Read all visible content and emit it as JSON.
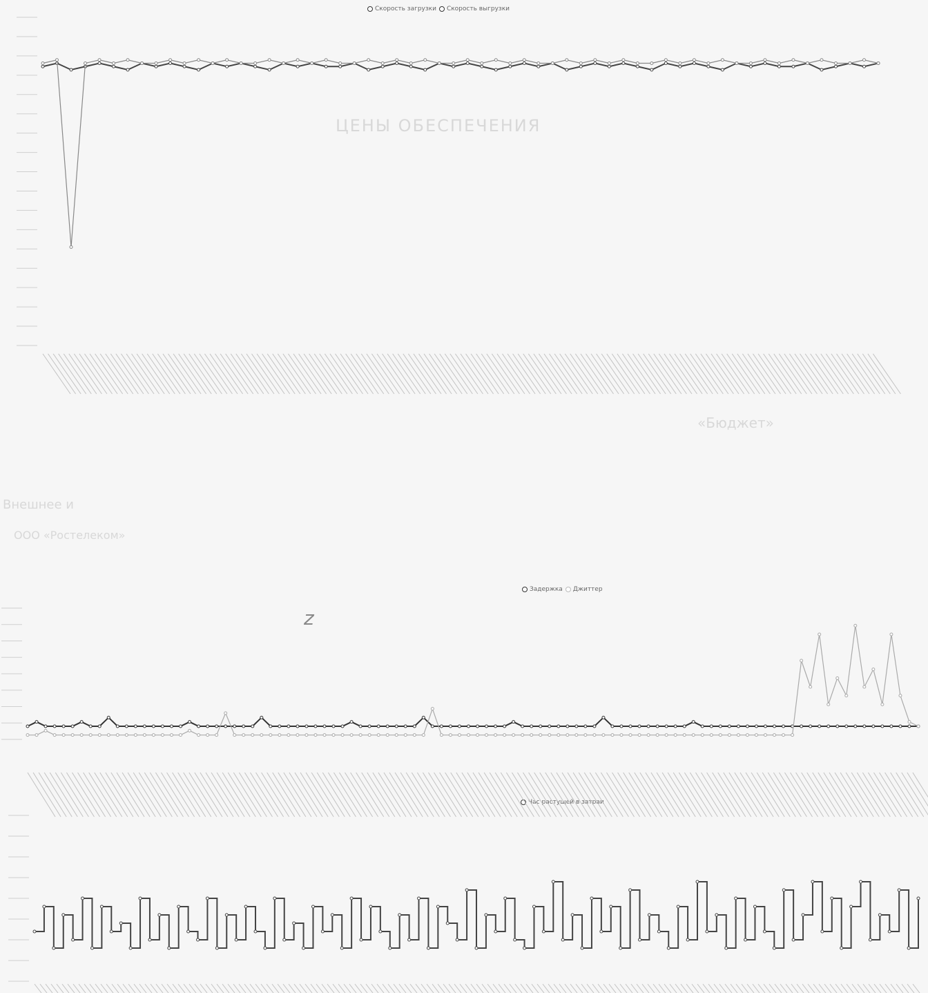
{
  "chart_data": [
    {
      "type": "line",
      "title": "",
      "xlabel": "",
      "ylabel": "",
      "legend_position": "top-center",
      "grid": false,
      "series": [
        {
          "name": "Скорость загрузки",
          "color": "#444444",
          "values": [
            85,
            86,
            84,
            85,
            86,
            85,
            84,
            86,
            85,
            86,
            85,
            84,
            86,
            85,
            86,
            85,
            84,
            86,
            85,
            86,
            85,
            85,
            86,
            84,
            85,
            86,
            85,
            84,
            86,
            85,
            86,
            85,
            84,
            85,
            86,
            85,
            86,
            84,
            85,
            86,
            85,
            86,
            85,
            84,
            86,
            85,
            86,
            85,
            84,
            86,
            85,
            86,
            85,
            85,
            86,
            84,
            85,
            86,
            85,
            86
          ]
        },
        {
          "name": "Скорость выгрузки",
          "color": "#888888",
          "values": [
            86,
            87,
            30,
            86,
            87,
            86,
            87,
            86,
            86,
            87,
            86,
            87,
            86,
            87,
            86,
            86,
            87,
            86,
            87,
            86,
            87,
            86,
            86,
            87,
            86,
            87,
            86,
            87,
            86,
            86,
            87,
            86,
            87,
            86,
            87,
            86,
            86,
            87,
            86,
            87,
            86,
            87,
            86,
            86,
            87,
            86,
            87,
            86,
            87,
            86,
            86,
            87,
            86,
            87,
            86,
            87,
            86,
            86,
            87,
            86
          ]
        }
      ]
    },
    {
      "type": "line",
      "title": "",
      "xlabel": "",
      "ylabel": "",
      "legend_position": "top-center",
      "grid": false,
      "series": [
        {
          "name": "Задержка",
          "color": "#333333",
          "values": [
            3,
            4,
            3,
            3,
            3,
            3,
            4,
            3,
            3,
            5,
            3,
            3,
            3,
            3,
            3,
            3,
            3,
            3,
            4,
            3,
            3,
            3,
            3,
            3,
            3,
            3,
            5,
            3,
            3,
            3,
            3,
            3,
            3,
            3,
            3,
            3,
            4,
            3,
            3,
            3,
            3,
            3,
            3,
            3,
            5,
            3,
            3,
            3,
            3,
            3,
            3,
            3,
            3,
            3,
            4,
            3,
            3,
            3,
            3,
            3,
            3,
            3,
            3,
            3,
            5,
            3,
            3,
            3,
            3,
            3,
            3,
            3,
            3,
            3,
            4,
            3,
            3,
            3,
            3,
            3,
            3,
            3,
            3,
            3,
            3,
            3,
            3,
            3,
            3,
            3,
            3,
            3,
            3,
            3,
            3,
            3,
            3,
            3,
            3,
            3
          ]
        },
        {
          "name": "Джиттер",
          "color": "#aaaaaa",
          "values": [
            1,
            1,
            2,
            1,
            1,
            1,
            1,
            1,
            1,
            1,
            1,
            1,
            1,
            1,
            1,
            1,
            1,
            1,
            2,
            1,
            1,
            1,
            6,
            1,
            1,
            1,
            1,
            1,
            1,
            1,
            1,
            1,
            1,
            1,
            1,
            1,
            1,
            1,
            1,
            1,
            1,
            1,
            1,
            1,
            1,
            7,
            1,
            1,
            1,
            1,
            1,
            1,
            1,
            1,
            1,
            1,
            1,
            1,
            1,
            1,
            1,
            1,
            1,
            1,
            1,
            1,
            1,
            1,
            1,
            1,
            1,
            1,
            1,
            1,
            1,
            1,
            1,
            1,
            1,
            1,
            1,
            1,
            1,
            1,
            1,
            1,
            18,
            12,
            24,
            8,
            14,
            10,
            26,
            12,
            16,
            8,
            24,
            10,
            4,
            3
          ]
        }
      ]
    },
    {
      "type": "line",
      "title": "",
      "xlabel": "",
      "ylabel": "",
      "legend_position": "top-center",
      "grid": false,
      "series": [
        {
          "name": "Час растущей в затраи",
          "color": "#444444",
          "values": [
            6,
            9,
            4,
            8,
            5,
            10,
            4,
            9,
            6,
            7,
            4,
            10,
            5,
            8,
            4,
            9,
            6,
            5,
            10,
            4,
            8,
            5,
            9,
            6,
            4,
            10,
            5,
            7,
            4,
            9,
            6,
            8,
            4,
            10,
            5,
            9,
            6,
            4,
            8,
            5,
            10,
            4,
            9,
            7,
            5,
            11,
            4,
            8,
            6,
            10,
            5,
            4,
            9,
            6,
            12,
            5,
            8,
            4,
            10,
            6,
            9,
            4,
            11,
            5,
            8,
            6,
            4,
            9,
            5,
            12,
            6,
            8,
            4,
            10,
            5,
            9,
            6,
            4,
            11,
            5,
            8,
            12,
            6,
            10,
            4,
            9,
            12,
            5,
            8,
            6,
            11,
            4,
            10
          ]
        }
      ]
    }
  ],
  "legends": {
    "chart1": [
      "Скорость загрузки",
      "Скорость выгрузки"
    ],
    "chart2": [
      "Задержка",
      "Джиттер"
    ],
    "chart3": [
      "Час растущей в затраи"
    ]
  },
  "background_text": [
    "ЦЕНЫ ОБЕСПЕЧЕНИЯ",
    "«Бюджет»",
    "Внешнее и",
    "ООО «Ростелеком»",
    "z"
  ]
}
